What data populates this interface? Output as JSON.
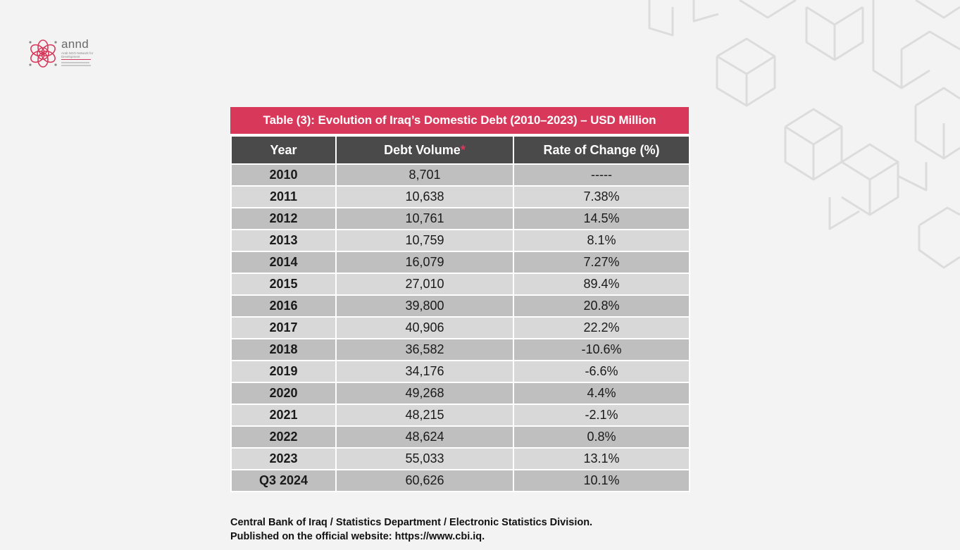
{
  "logo": {
    "name": "annd",
    "subtitle": "Arab NGO Network for Development"
  },
  "table": {
    "title": "Table (3): Evolution of Iraq’s Domestic Debt (2010–2023) – USD Million",
    "headers": {
      "year": "Year",
      "debt": "Debt Volume",
      "debt_marker": "*",
      "rate": "Rate of Change (%)"
    },
    "rows": [
      {
        "year": "2010",
        "debt": "8,701",
        "rate": "-----"
      },
      {
        "year": "2011",
        "debt": "10,638",
        "rate": "7.38%"
      },
      {
        "year": "2012",
        "debt": "10,761",
        "rate": "14.5%"
      },
      {
        "year": "2013",
        "debt": "10,759",
        "rate": "8.1%"
      },
      {
        "year": "2014",
        "debt": "16,079",
        "rate": "7.27%"
      },
      {
        "year": "2015",
        "debt": "27,010",
        "rate": "89.4%"
      },
      {
        "year": "2016",
        "debt": "39,800",
        "rate": "20.8%"
      },
      {
        "year": "2017",
        "debt": "40,906",
        "rate": "22.2%"
      },
      {
        "year": "2018",
        "debt": "36,582",
        "rate": "-10.6%"
      },
      {
        "year": "2019",
        "debt": "34,176",
        "rate": "-6.6%"
      },
      {
        "year": "2020",
        "debt": "49,268",
        "rate": "4.4%"
      },
      {
        "year": "2021",
        "debt": "48,215",
        "rate": "-2.1%"
      },
      {
        "year": "2022",
        "debt": "48,624",
        "rate": "0.8%"
      },
      {
        "year": "2023",
        "debt": "55,033",
        "rate": "13.1%"
      },
      {
        "year": "Q3 2024",
        "debt": "60,626",
        "rate": "10.1%"
      }
    ]
  },
  "source": {
    "line1": "Central Bank of Iraq / Statistics Department / Electronic Statistics Division.",
    "line2": "Published on the official website: https://www.cbi.iq."
  },
  "colors": {
    "accent": "#d8395b",
    "header_bg": "#4a4a4a",
    "row_dark": "#bfbfbf",
    "row_light": "#d8d8d8",
    "page_bg": "#f3f3f3"
  }
}
